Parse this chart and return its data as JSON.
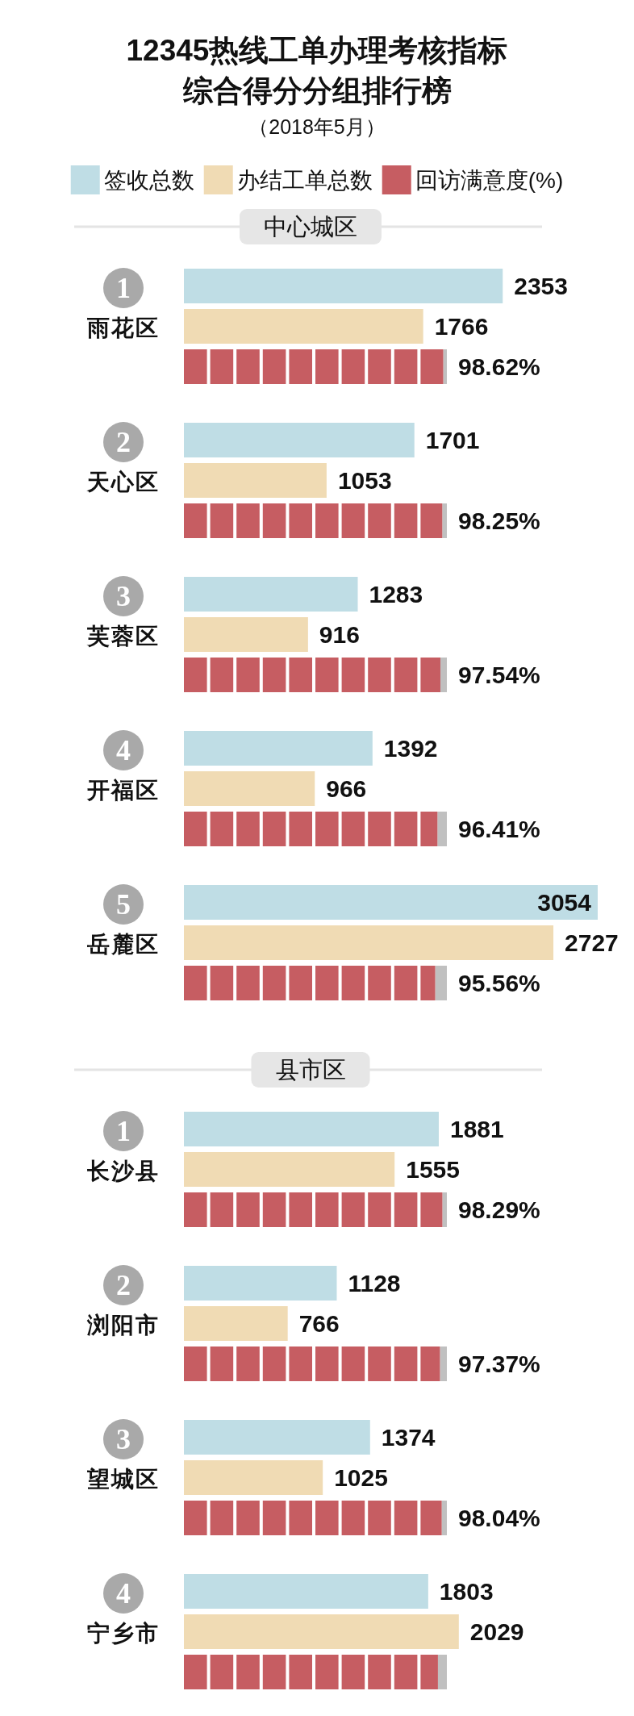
{
  "chart_data": [
    {
      "type": "bar",
      "orientation": "horizontal",
      "title": "12345热线工单办理考核指标综合得分分组排行榜",
      "subtitle": "（2018年5月）",
      "ylabel": "中心城区",
      "legend": "top",
      "tick_labels": "y",
      "categories": [
        "1\n雨花区",
        "2\n天心区",
        "3\n芙蓉区",
        "4\n开福区",
        "5\n岳麓区"
      ],
      "series": [
        {
          "name": "签收总数",
          "color": "#bfdde5",
          "values": [
            2353,
            1701,
            1283,
            1392,
            3054
          ],
          "value_labels": [
            "2353",
            "1701",
            "1283",
            "1392",
            "3054"
          ]
        },
        {
          "name": "办结工单总数",
          "color": "#f0dbb4",
          "values": [
            1766,
            1053,
            916,
            966,
            2727
          ],
          "value_labels": [
            "1766",
            "1053",
            "916",
            "966",
            "2727"
          ]
        }
      ]
    },
    {
      "type": "bar",
      "orientation": "horizontal",
      "legend": "top",
      "tick_labels": false,
      "categories": [
        "1\n雨花区",
        "2\n天心区",
        "3\n芙蓉区",
        "4\n开福区",
        "5\n岳麓区"
      ],
      "xlim": [
        0,
        100
      ],
      "series": [
        {
          "name": "回访满意度(%)",
          "color": "#c65d62",
          "values": [
            98.62,
            98.25,
            97.54,
            96.41,
            95.56
          ],
          "value_labels": [
            "98.62%",
            "98.25%",
            "97.54%",
            "96.41%",
            "95.56%"
          ]
        }
      ]
    },
    {
      "type": "bar",
      "orientation": "horizontal",
      "ylabel": "县市区",
      "tick_labels": "y",
      "categories": [
        "1\n长沙县",
        "2\n浏阳市",
        "3\n望城区",
        "4\n宁乡市"
      ],
      "series": [
        {
          "color": "#bfdde5",
          "values": [
            1881,
            1128,
            1374,
            1803
          ],
          "value_labels": [
            "1881",
            "1128",
            "1374",
            "1803"
          ]
        },
        {
          "color": "#f0dbb4",
          "values": [
            1555,
            766,
            1025,
            2029
          ],
          "value_labels": [
            "1555",
            "766",
            "1025",
            "2029"
          ]
        }
      ]
    },
    {
      "type": "bar",
      "orientation": "horizontal",
      "tick_labels": false,
      "categories": [
        "1\n长沙县",
        "2\n浏阳市",
        "3\n望城区",
        "4\n宁乡市"
      ],
      "xlim": [
        0,
        100
      ],
      "series": [
        {
          "color": "#c65d62",
          "values": [
            98.29,
            97.37,
            98.04,
            96.6
          ],
          "value_labels": [
            "98.29%",
            "97.37%",
            "98.04%",
            null
          ]
        }
      ]
    }
  ]
}
